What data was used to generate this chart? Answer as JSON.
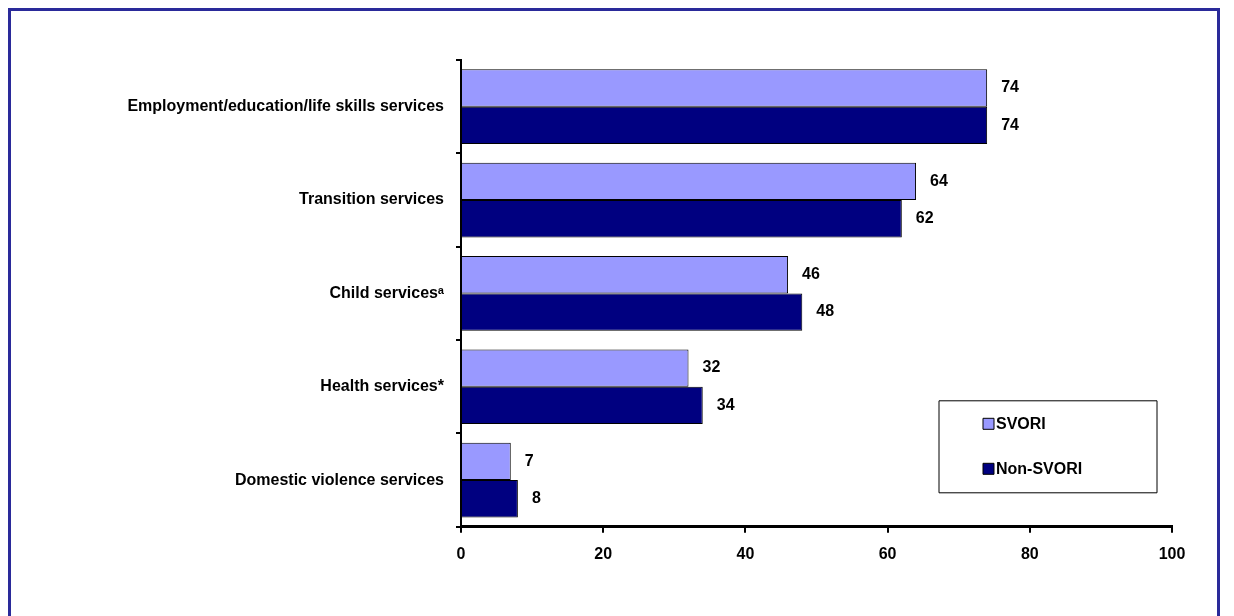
{
  "chart_data": {
    "type": "bar",
    "orientation": "horizontal",
    "categories": [
      "Employment/education/life skills services",
      "Transition services",
      "Child servicesᵃ",
      "Health services*",
      "Domestic violence services"
    ],
    "series": [
      {
        "name": "SVORI",
        "color": "#9999ff",
        "values": [
          74,
          64,
          46,
          32,
          7
        ]
      },
      {
        "name": "Non-SVORI",
        "color": "#000080",
        "values": [
          74,
          62,
          48,
          34,
          8
        ]
      }
    ],
    "xlim": [
      0,
      100
    ],
    "xticks": [
      0,
      20,
      40,
      60,
      80,
      100
    ],
    "data_labels": true,
    "grid": false,
    "legend": "bottom right"
  }
}
